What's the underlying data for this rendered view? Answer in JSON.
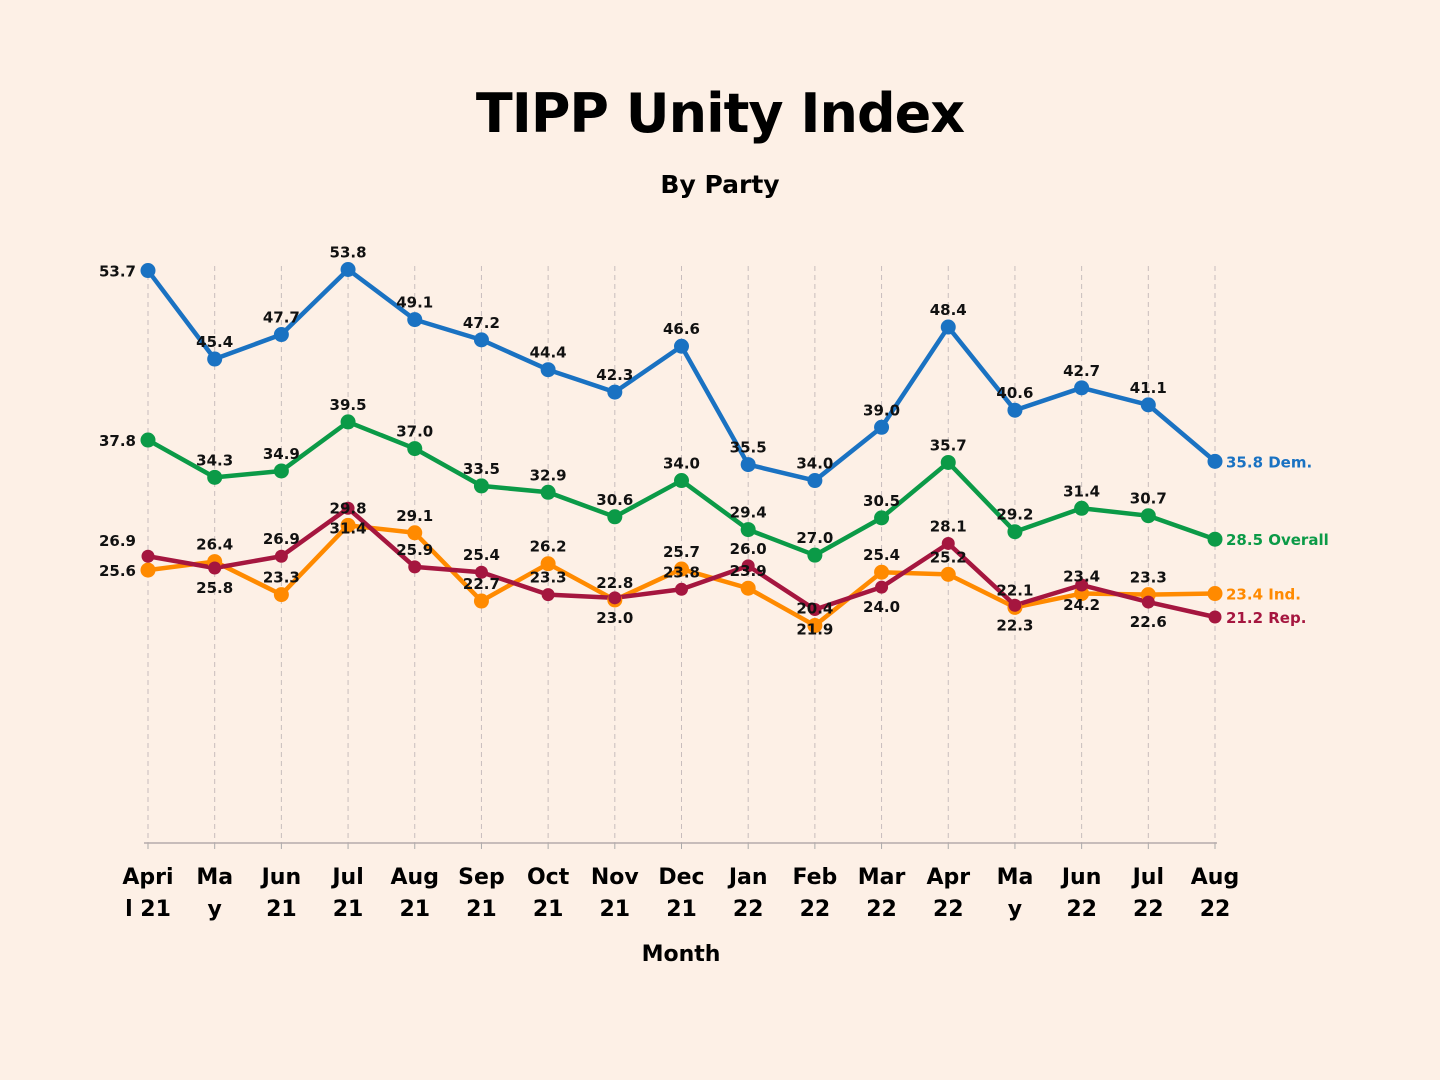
{
  "chart_data": {
    "type": "line",
    "title": "TIPP Unity Index",
    "subtitle": "By Party",
    "xlabel": "Month",
    "ylabel": "",
    "ylim": [
      0,
      54
    ],
    "grid": "vertical dashed",
    "categories": [
      [
        "Apri",
        "l 21"
      ],
      [
        "Ma",
        "y"
      ],
      [
        "Jun",
        "21"
      ],
      [
        "Jul",
        "21"
      ],
      [
        "Aug",
        "21"
      ],
      [
        "Sep",
        "21"
      ],
      [
        "Oct",
        "21"
      ],
      [
        "Nov",
        "21"
      ],
      [
        "Dec",
        "21"
      ],
      [
        "Jan",
        "22"
      ],
      [
        "Feb",
        "22"
      ],
      [
        "Mar",
        "22"
      ],
      [
        "Apr",
        "22"
      ],
      [
        "Ma",
        "y"
      ],
      [
        "Jun",
        "22"
      ],
      [
        "Jul",
        "22"
      ],
      [
        "Aug",
        "22"
      ]
    ],
    "series": [
      {
        "name": "Dem.",
        "end_label": "35.8 Dem.",
        "color": "#1a72c2",
        "values": [
          53.7,
          45.4,
          47.7,
          53.8,
          49.1,
          47.2,
          44.4,
          42.3,
          46.6,
          35.5,
          34.0,
          39.0,
          48.4,
          40.6,
          42.7,
          41.1,
          35.8
        ]
      },
      {
        "name": "Overall",
        "end_label": "28.5 Overall",
        "color": "#0b9a47",
        "values": [
          37.8,
          34.3,
          34.9,
          39.5,
          37.0,
          33.5,
          32.9,
          30.6,
          34.0,
          29.4,
          27.0,
          30.5,
          35.7,
          29.2,
          31.4,
          30.7,
          28.5
        ]
      },
      {
        "name": "Ind.",
        "end_label": "23.4 Ind.",
        "color": "#ff8a00",
        "values": [
          25.6,
          26.4,
          23.3,
          29.8,
          29.1,
          22.7,
          26.2,
          22.8,
          25.7,
          23.9,
          20.4,
          25.4,
          25.2,
          22.1,
          23.4,
          23.3,
          23.4
        ]
      },
      {
        "name": "Rep.",
        "end_label": "21.2 Rep.",
        "color": "#a5163f",
        "values": [
          26.9,
          25.8,
          26.9,
          31.4,
          25.9,
          25.4,
          23.3,
          23.0,
          23.8,
          26.0,
          21.9,
          24.0,
          28.1,
          22.3,
          24.2,
          22.6,
          21.2
        ]
      }
    ]
  }
}
